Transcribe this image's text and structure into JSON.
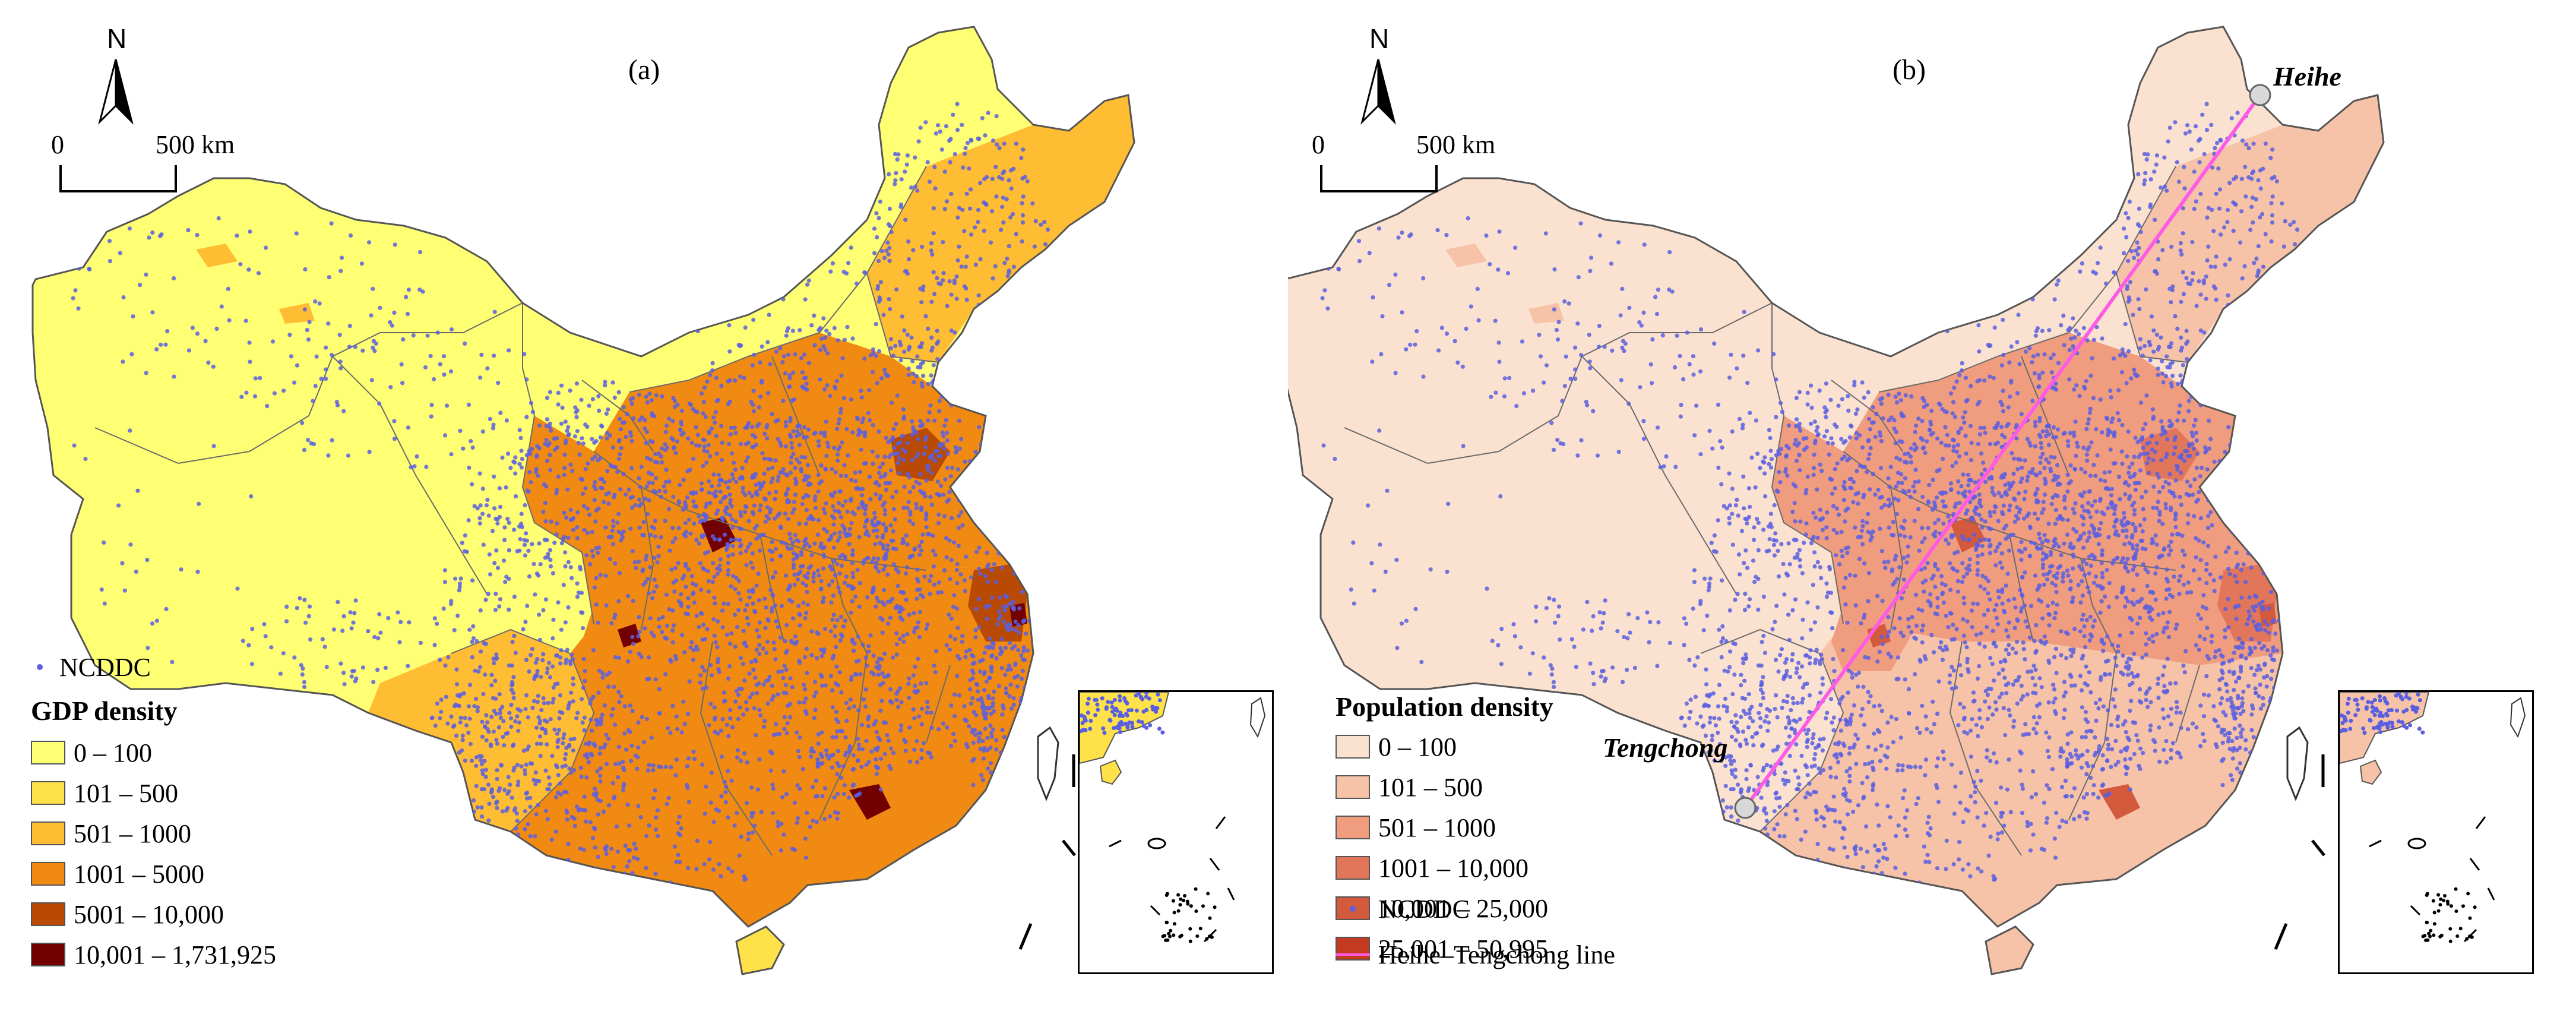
{
  "colors": {
    "gdp": [
      "#ffff73",
      "#ffe24a",
      "#ffbd33",
      "#f08a12",
      "#b84a04",
      "#730000"
    ],
    "pop": [
      "#fbe2d0",
      "#f7c3a8",
      "#f09c7f",
      "#e2765a",
      "#d45a3e",
      "#c43a20"
    ],
    "ncddc_dot": "#5a5fe0",
    "line": "#ff5ae6",
    "boundary": "#6b6b6b"
  },
  "panel_a": {
    "label": "(a)",
    "north": "N",
    "scale": {
      "zero": "0",
      "end": "500 km"
    },
    "ncddc_label": "NCDDC",
    "legend_title": "GDP density",
    "legend": [
      "0 – 100",
      "101 – 500",
      "501 – 1000",
      "1001 – 5000",
      "5001 – 10,000",
      "10,001 – 1,731,925"
    ]
  },
  "panel_b": {
    "label": "(b)",
    "north": "N",
    "scale": {
      "zero": "0",
      "end": "500 km"
    },
    "legend_title": "Population density",
    "legend": [
      "0 – 100",
      "101 – 500",
      "501 – 1000",
      "1001 – 10,000",
      "10,001 – 25,000",
      "25,001 – 50,995"
    ],
    "ncddc_label": "NCDDC",
    "line_label": "Heihe–Tengchong line",
    "city_heihe": "Heihe",
    "city_tengchong": "Tengchong"
  }
}
